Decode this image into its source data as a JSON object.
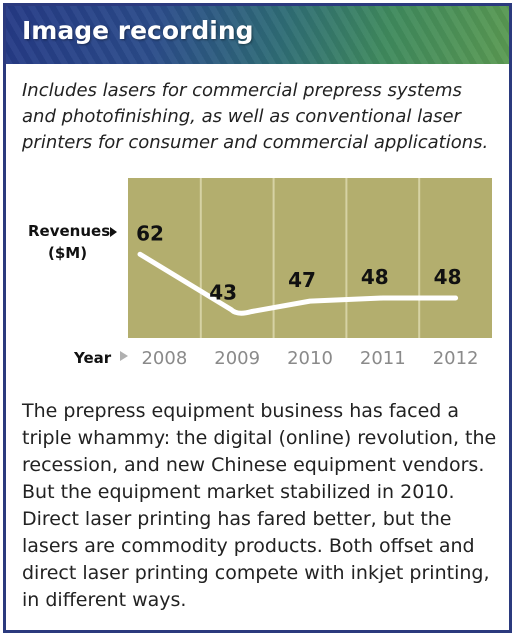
{
  "header": {
    "title": "Image recording"
  },
  "intro_text": "Includes lasers for commercial prepress systems and photofinishing, as well as conventional laser printers for consumer and commercial applications.",
  "chart_data": {
    "type": "line",
    "categories": [
      "2008",
      "2009",
      "2010",
      "2011",
      "2012"
    ],
    "values": [
      62,
      43,
      47,
      48,
      48
    ],
    "value_labels": [
      "62",
      "43",
      "47",
      "48",
      "48"
    ],
    "ylabel": "Revenues (▶) ($M)",
    "ylabel_line1": "Revenues",
    "ylabel_line2": "($M)",
    "xlabel": "Year",
    "ylim": [
      40,
      64
    ],
    "grid": true,
    "colors": {
      "plot_bg": "#b3ae6e",
      "line": "#ffffff",
      "grid": "#d6d2a4",
      "axis_text": "#8a8a8a",
      "label_text": "#111111"
    }
  },
  "body_text": "The prepress equipment business has faced a triple whammy: the digital (online) revolution, the recession, and new Chinese equipment vendors. But the equipment market stabilized in 2010. Direct laser printing has fared better, but the lasers are commodity products. Both offset and direct laser printing compete with inkjet printing, in different ways."
}
